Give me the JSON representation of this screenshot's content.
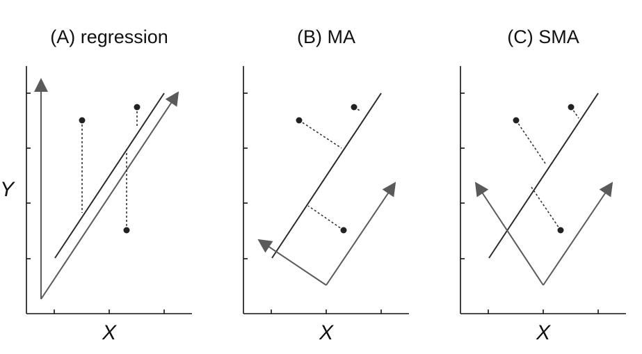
{
  "panels": [
    {
      "id": "A",
      "title": "(A) regression",
      "xlabel": "X",
      "ylabel": "Y"
    },
    {
      "id": "B",
      "title": "(B) MA",
      "xlabel": "X",
      "ylabel": ""
    },
    {
      "id": "C",
      "title": "(C) SMA",
      "xlabel": "X",
      "ylabel": ""
    }
  ],
  "colors": {
    "axis": "#111111",
    "fit_line": "#2a2a2a",
    "arrow": "#5a5a5a",
    "point": "#222222",
    "residual": "#333333"
  }
}
